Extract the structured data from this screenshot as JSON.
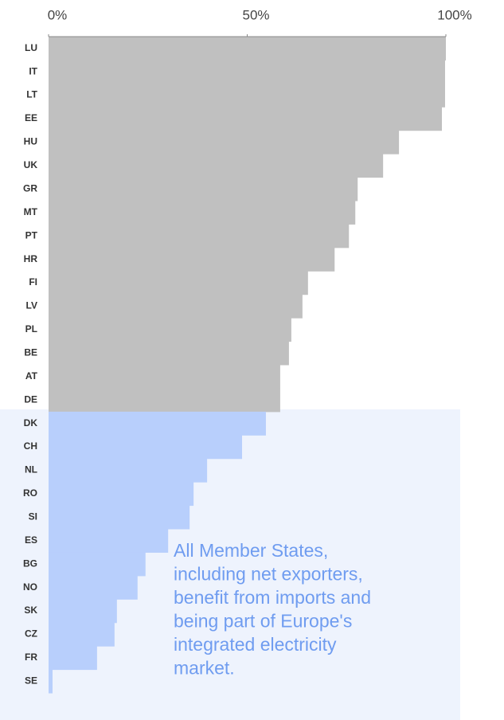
{
  "chart_data": {
    "type": "bar",
    "orientation": "horizontal",
    "categories": [
      "LU",
      "IT",
      "LT",
      "EE",
      "HU",
      "UK",
      "GR",
      "MT",
      "PT",
      "HR",
      "FI",
      "LV",
      "PL",
      "BE",
      "AT",
      "DE",
      "DK",
      "CH",
      "NL",
      "RO",
      "SI",
      "ES",
      "BG",
      "NO",
      "SK",
      "CZ",
      "FR",
      "SE"
    ],
    "values": [
      100,
      99.8,
      99.8,
      99,
      88.2,
      84.2,
      77.8,
      77.2,
      75.6,
      72,
      65.3,
      63.9,
      61.1,
      60.5,
      58.3,
      58.3,
      54.7,
      48.7,
      39.9,
      36.5,
      35.5,
      30.1,
      24.4,
      22.4,
      17.2,
      16.6,
      12.2,
      1
    ],
    "colors": [
      "#c0c0c0",
      "#c0c0c0",
      "#c0c0c0",
      "#c0c0c0",
      "#c0c0c0",
      "#c0c0c0",
      "#c0c0c0",
      "#c0c0c0",
      "#c0c0c0",
      "#c0c0c0",
      "#c0c0c0",
      "#c0c0c0",
      "#c0c0c0",
      "#c0c0c0",
      "#c0c0c0",
      "#c0c0c0",
      "#b8cffc",
      "#b8cffc",
      "#b8cffc",
      "#b8cffc",
      "#b8cffc",
      "#b8cffc",
      "#b8cffc",
      "#b8cffc",
      "#b8cffc",
      "#b8cffc",
      "#b8cffc",
      "#b8cffc"
    ],
    "xlim": [
      0,
      100
    ],
    "xticks": [
      {
        "value": 0,
        "label": "0%"
      },
      {
        "value": 50,
        "label": "50%"
      },
      {
        "value": 100,
        "label": "100%"
      }
    ],
    "annotation": [
      "All Member States,",
      "including net exporters,",
      "benefit from imports and",
      "being part of Europe's",
      "integrated electricity",
      "market."
    ]
  }
}
